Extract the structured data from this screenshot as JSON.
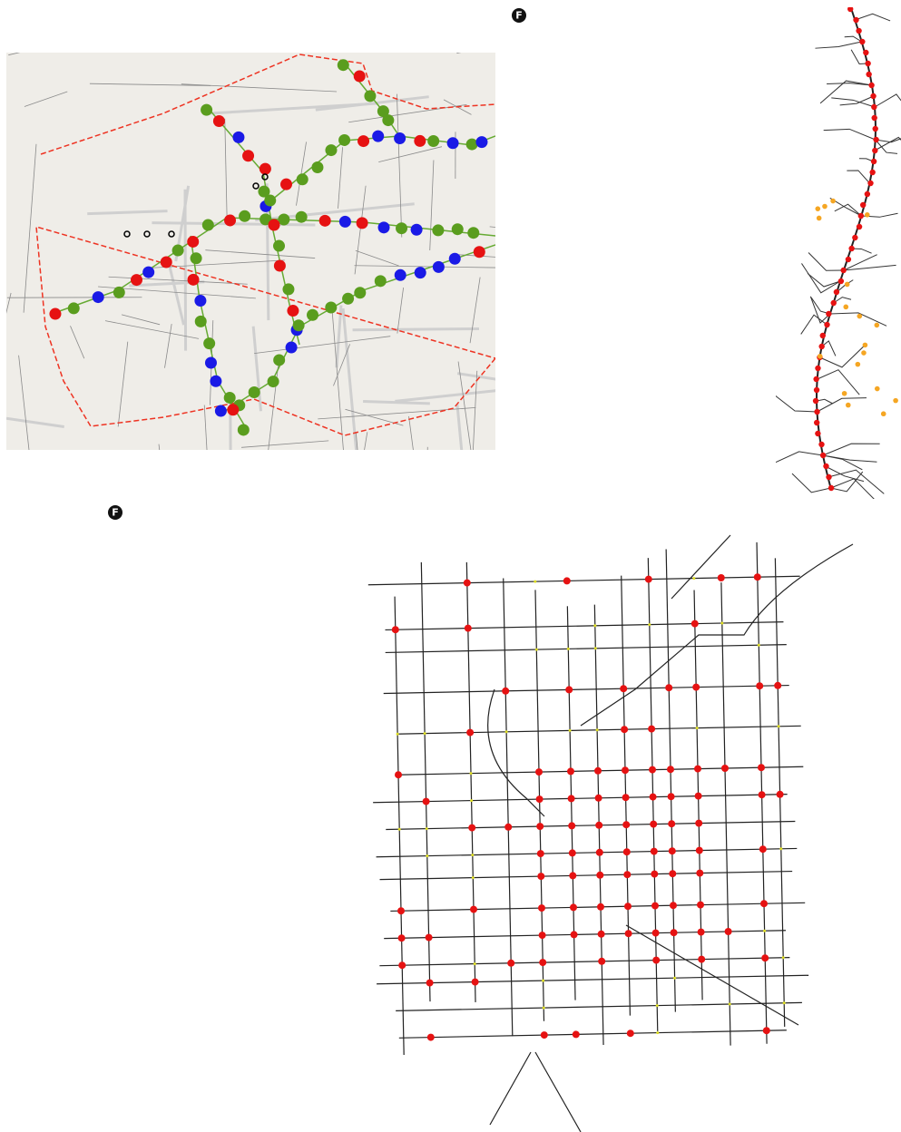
{
  "badges": [
    "F",
    "F"
  ]
}
